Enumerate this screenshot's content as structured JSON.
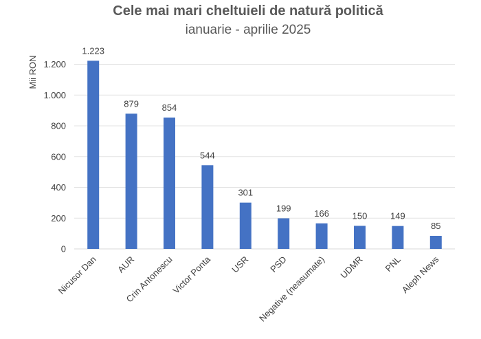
{
  "chart_data": {
    "type": "bar",
    "title": "Cele mai mari cheltuieli de natură politică",
    "subtitle": "ianuarie - aprilie 2025",
    "xlabel": "",
    "ylabel": "Mii RON",
    "categories": [
      "Nicusor Dan",
      "AUR",
      "Crin Antonescu",
      "Victor Ponta",
      "USR",
      "PSD",
      "Negative (neasumate)",
      "UDMR",
      "PNL",
      "Aleph News"
    ],
    "values": [
      1223,
      879,
      854,
      544,
      301,
      199,
      166,
      150,
      149,
      85
    ],
    "value_labels": [
      "1.223",
      "879",
      "854",
      "544",
      "301",
      "199",
      "166",
      "150",
      "149",
      "85"
    ],
    "ylim": [
      0,
      1200
    ],
    "yticks": [
      0,
      200,
      400,
      600,
      800,
      1000,
      1200
    ],
    "ytick_labels": [
      "0",
      "200",
      "400",
      "600",
      "800",
      "1.000",
      "1.200"
    ],
    "grid": true,
    "legend": "none",
    "bar_color": "#4472c4"
  }
}
